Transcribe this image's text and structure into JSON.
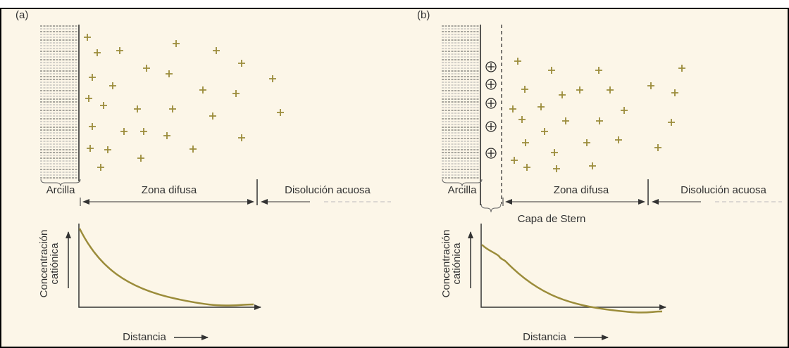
{
  "panels": [
    {
      "label": "(a)",
      "clay": "Arcilla",
      "diffuse_zone": "Zona difusa",
      "solution": "Disolución acuosa",
      "y_axis": [
        "Concentración",
        "catiónica"
      ],
      "x_axis": "Distancia"
    },
    {
      "label": "(b)",
      "clay": "Arcilla",
      "diffuse_zone": "Zona difusa",
      "solution": "Disolución acuosa",
      "stern_layer": "Capa de Stern",
      "y_axis": [
        "Concentración",
        "catiónica"
      ],
      "x_axis": "Distancia"
    }
  ]
}
